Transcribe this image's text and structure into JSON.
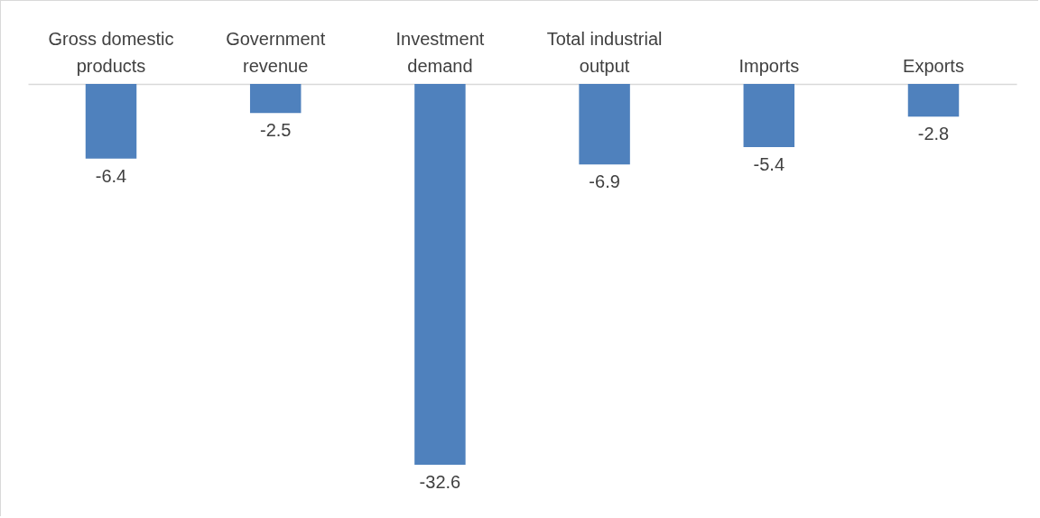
{
  "chart_data": {
    "type": "bar",
    "categories": [
      "Gross domestic products",
      "Government revenue",
      "Investment demand",
      "Total industrial output",
      "Imports",
      "Exports"
    ],
    "values": [
      -6.4,
      -2.5,
      -32.6,
      -6.9,
      -5.4,
      -2.8
    ],
    "color": "#4f81bd",
    "data_labels": true,
    "grid": false
  }
}
